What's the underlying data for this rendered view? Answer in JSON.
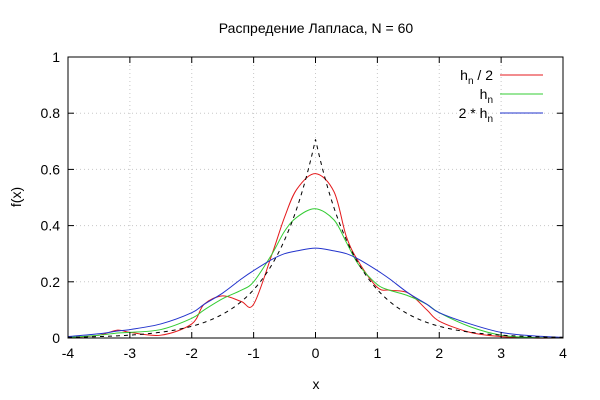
{
  "chart_data": {
    "type": "line",
    "title": "Распредение Лапласа, N = 60",
    "xlabel": "x",
    "ylabel": "f(x)",
    "xlim": [
      -4,
      4
    ],
    "ylim": [
      0,
      1
    ],
    "x_ticks": [
      "-4",
      "-3",
      "-2",
      "-1",
      "0",
      "1",
      "2",
      "3",
      "4"
    ],
    "y_ticks": [
      "0",
      "0.2",
      "0.4",
      "0.6",
      "0.8",
      "1"
    ],
    "grid": true,
    "legend_position": "top-right",
    "x": [
      -4.0,
      -3.5,
      -3.2,
      -3.0,
      -2.5,
      -2.0,
      -1.8,
      -1.5,
      -1.2,
      -1.0,
      -0.7,
      -0.5,
      -0.3,
      0.0,
      0.3,
      0.5,
      0.7,
      1.0,
      1.2,
      1.5,
      1.8,
      2.0,
      2.5,
      3.0,
      3.5,
      4.0
    ],
    "series": [
      {
        "name": "hn / 2",
        "name_main": "h",
        "name_sub": "n",
        "name_suffix": " / 2",
        "color": "#e41a1c",
        "values": [
          0.0,
          0.01,
          0.028,
          0.02,
          0.01,
          0.05,
          0.12,
          0.15,
          0.13,
          0.12,
          0.3,
          0.43,
          0.53,
          0.585,
          0.52,
          0.36,
          0.27,
          0.18,
          0.17,
          0.16,
          0.1,
          0.06,
          0.02,
          0.005,
          0.0,
          0.0
        ]
      },
      {
        "name": "hn",
        "name_main": "h",
        "name_sub": "n",
        "name_suffix": "",
        "color": "#33cc33",
        "values": [
          0.002,
          0.01,
          0.018,
          0.02,
          0.03,
          0.07,
          0.1,
          0.14,
          0.17,
          0.2,
          0.3,
          0.38,
          0.43,
          0.46,
          0.42,
          0.34,
          0.26,
          0.19,
          0.17,
          0.15,
          0.12,
          0.09,
          0.04,
          0.01,
          0.002,
          0.0
        ]
      },
      {
        "name": "2 * hn",
        "name_main": "2 * h",
        "name_sub": "n",
        "name_suffix": "",
        "color": "#2233cc",
        "values": [
          0.005,
          0.015,
          0.025,
          0.03,
          0.05,
          0.09,
          0.12,
          0.16,
          0.21,
          0.24,
          0.28,
          0.3,
          0.31,
          0.32,
          0.31,
          0.3,
          0.28,
          0.24,
          0.21,
          0.16,
          0.12,
          0.09,
          0.05,
          0.02,
          0.008,
          0.002
        ]
      },
      {
        "name": "",
        "color": "#000000",
        "dashed": true,
        "function": "0.5*sqrt(2)*exp(-sqrt(2)*|x|)"
      }
    ]
  }
}
